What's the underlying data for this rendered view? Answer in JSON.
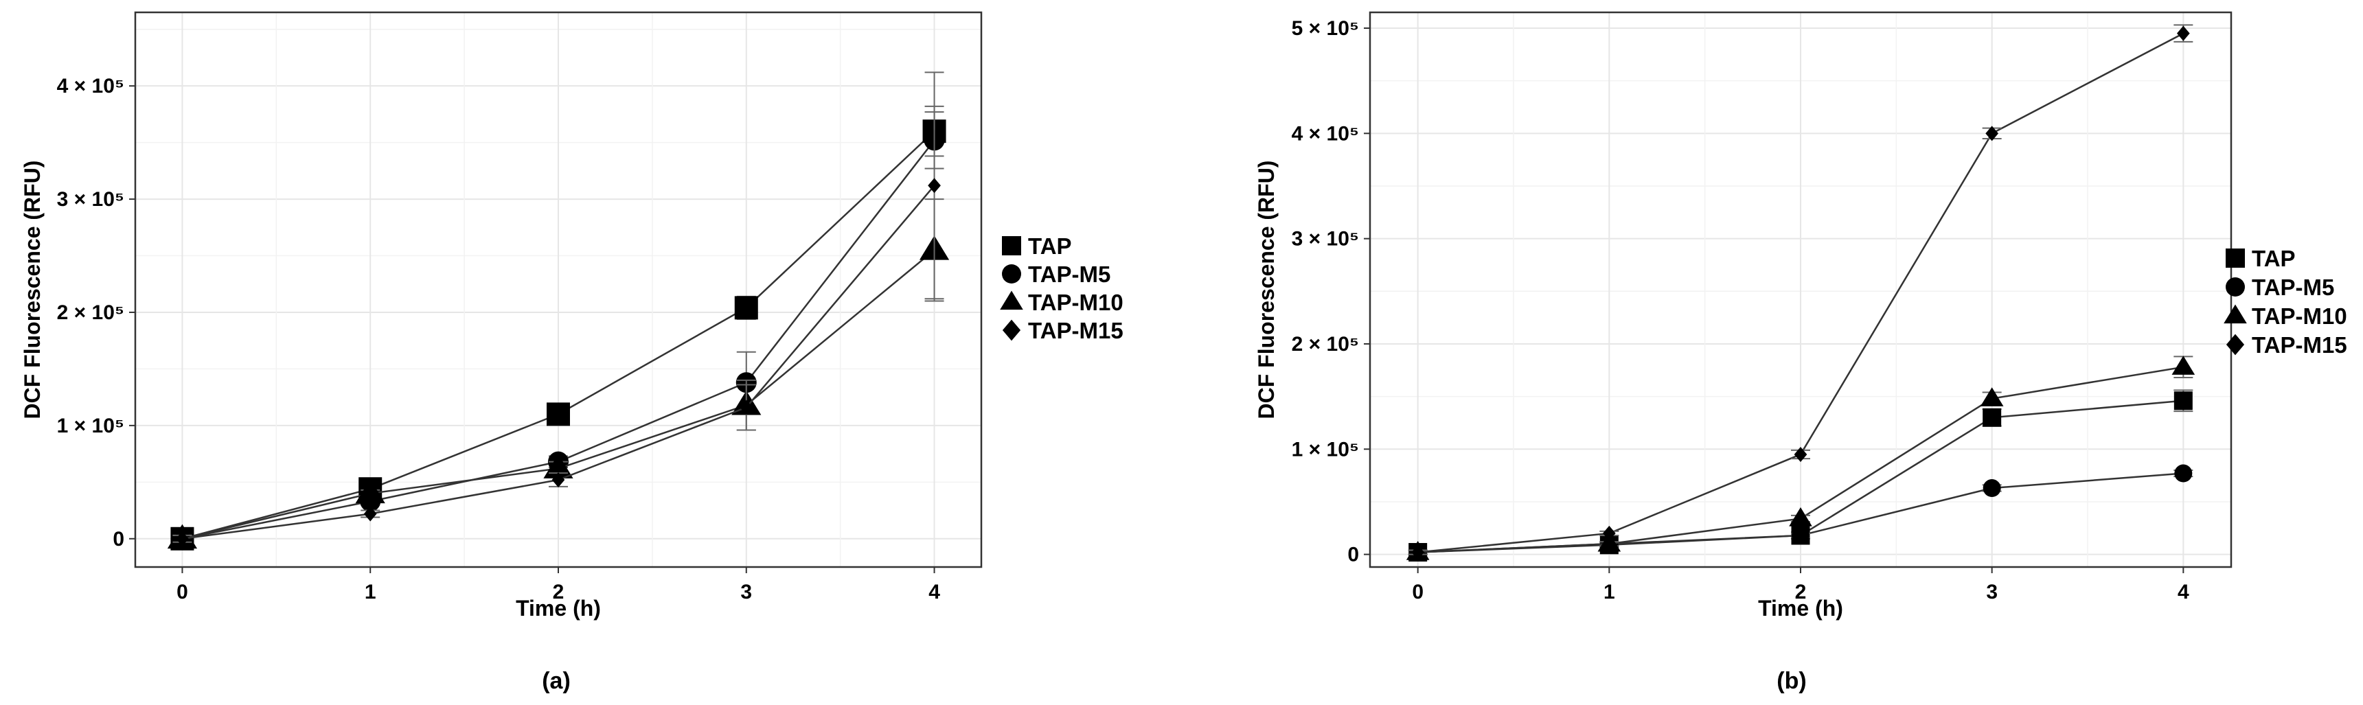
{
  "chart_data": [
    {
      "type": "line",
      "panel_label": "(a)",
      "xlabel": "Time (h)",
      "ylabel": "DCF Fluorescence (RFU)",
      "x": [
        0,
        1,
        2,
        3,
        4
      ],
      "xlim": [
        -0.25,
        4.25
      ],
      "ylim": [
        -25000,
        465000
      ],
      "x_ticks": [
        "0",
        "1",
        "2",
        "3",
        "4"
      ],
      "y_ticks": [
        {
          "value": 0,
          "label": "0"
        },
        {
          "value": 100000,
          "label": "1 × 10⁵"
        },
        {
          "value": 200000,
          "label": "2 × 10⁵"
        },
        {
          "value": 300000,
          "label": "3 × 10⁵"
        },
        {
          "value": 400000,
          "label": "4 × 10⁵"
        }
      ],
      "grid": true,
      "legend_position": "right",
      "series": [
        {
          "name": "TAP",
          "marker": "square",
          "values": [
            0,
            44000,
            110000,
            204000,
            360000
          ],
          "errors": [
            4000,
            3000,
            5000,
            10000,
            22000
          ]
        },
        {
          "name": "TAP-M5",
          "marker": "circle",
          "values": [
            0,
            33000,
            68000,
            138000,
            352000
          ],
          "errors": [
            3000,
            3000,
            5000,
            27000,
            25000
          ]
        },
        {
          "name": "TAP-M10",
          "marker": "triangle",
          "values": [
            0,
            40000,
            62000,
            118000,
            255000
          ],
          "errors": [
            3000,
            3000,
            6000,
            22000,
            45000
          ]
        },
        {
          "name": "TAP-M15",
          "marker": "diamond",
          "values": [
            0,
            22000,
            52000,
            116000,
            312000
          ],
          "errors": [
            3000,
            3000,
            6000,
            20000,
            100000
          ]
        }
      ]
    },
    {
      "type": "line",
      "panel_label": "(b)",
      "xlabel": "Time (h)",
      "ylabel": "DCF Fluorescence (RFU)",
      "x": [
        0,
        1,
        2,
        3,
        4
      ],
      "xlim": [
        -0.25,
        4.25
      ],
      "ylim": [
        -12000,
        515000
      ],
      "x_ticks": [
        "0",
        "1",
        "2",
        "3",
        "4"
      ],
      "y_ticks": [
        {
          "value": 0,
          "label": "0"
        },
        {
          "value": 100000,
          "label": "1 × 10⁵"
        },
        {
          "value": 200000,
          "label": "2 × 10⁵"
        },
        {
          "value": 300000,
          "label": "3 × 10⁵"
        },
        {
          "value": 400000,
          "label": "4 × 10⁵"
        },
        {
          "value": 500000,
          "label": "5 × 10⁵"
        }
      ],
      "grid": true,
      "legend_position": "right",
      "series": [
        {
          "name": "TAP",
          "marker": "square",
          "values": [
            2000,
            9000,
            18000,
            130000,
            146000
          ],
          "errors": [
            2000,
            2000,
            3000,
            8000,
            10000
          ]
        },
        {
          "name": "TAP-M5",
          "marker": "circle",
          "values": [
            2000,
            10000,
            18000,
            63000,
            77000
          ],
          "errors": [
            2000,
            2000,
            2000,
            3000,
            3000
          ]
        },
        {
          "name": "TAP-M10",
          "marker": "triangle",
          "values": [
            2000,
            10000,
            34000,
            148000,
            178000
          ],
          "errors": [
            2000,
            2000,
            3000,
            6000,
            10000
          ]
        },
        {
          "name": "TAP-M15",
          "marker": "diamond",
          "values": [
            2000,
            20000,
            95000,
            400000,
            495000
          ],
          "errors": [
            2000,
            2000,
            4000,
            5000,
            8000
          ]
        }
      ]
    }
  ]
}
